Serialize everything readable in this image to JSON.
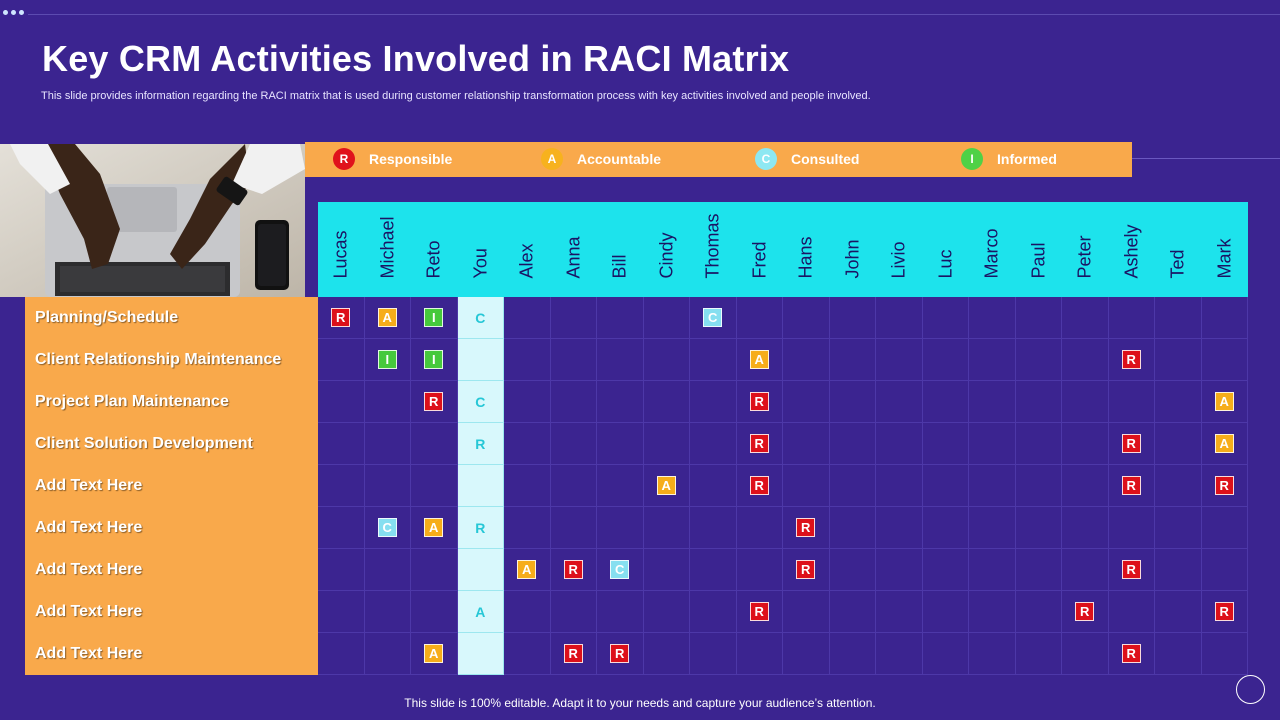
{
  "title": "Key CRM Activities Involved in RACI Matrix",
  "subtitle": "This slide provides information regarding the RACI matrix that is used during customer relationship transformation process with key activities involved and people involved.",
  "legend": [
    {
      "letter": "R",
      "label": "Responsible",
      "color": "#e0121b"
    },
    {
      "letter": "A",
      "label": "Accountable",
      "color": "#f7b21e"
    },
    {
      "letter": "C",
      "label": "Consulted",
      "color": "#8ee8f2"
    },
    {
      "letter": "I",
      "label": "Informed",
      "color": "#4fd146"
    }
  ],
  "badge_colors": {
    "R": "#dd101a",
    "A": "#f6ad1a",
    "C": "#86dff0",
    "I": "#46c93c"
  },
  "people": [
    "Lucas",
    "Michael",
    "Reto",
    "You",
    "Alex",
    "Anna",
    "Bill",
    "Cindy",
    "Thomas",
    "Fred",
    "Hans",
    "John",
    "Livio",
    "Luc",
    "Marco",
    "Paul",
    "Peter",
    "Ashely",
    "Ted",
    "Mark"
  ],
  "highlight_column": "You",
  "activities": [
    {
      "label": "Planning/Schedule",
      "cells": {
        "Lucas": "R",
        "Michael": "A",
        "Reto": "I",
        "You": "C",
        "Thomas": "C"
      }
    },
    {
      "label": "Client Relationship Maintenance",
      "cells": {
        "Michael": "I",
        "Reto": "I",
        "Fred": "A",
        "Ashely": "R"
      }
    },
    {
      "label": "Project Plan Maintenance",
      "cells": {
        "Reto": "R",
        "You": "C",
        "Fred": "R",
        "Mark": "A"
      }
    },
    {
      "label": "Client Solution Development",
      "cells": {
        "You": "R",
        "Fred": "R",
        "Ashely": "R",
        "Mark": "A"
      }
    },
    {
      "label": "Add Text Here",
      "cells": {
        "Cindy": "A",
        "Fred": "R",
        "Ashely": "R",
        "Mark": "R"
      }
    },
    {
      "label": "Add Text Here",
      "cells": {
        "Michael": "C",
        "Reto": "A",
        "You": "R",
        "Hans": "R"
      }
    },
    {
      "label": "Add Text Here",
      "cells": {
        "Alex": "A",
        "Anna": "R",
        "Bill": "C",
        "Hans": "R",
        "Ashely": "R"
      }
    },
    {
      "label": "Add Text Here",
      "cells": {
        "You": "A",
        "Fred": "R",
        "Peter": "R",
        "Mark": "R"
      }
    },
    {
      "label": "Add Text Here",
      "cells": {
        "Reto": "A",
        "Anna": "R",
        "Bill": "R",
        "Ashely": "R"
      }
    }
  ],
  "footer": "This slide is 100% editable. Adapt it to your needs and capture your audience’s attention."
}
